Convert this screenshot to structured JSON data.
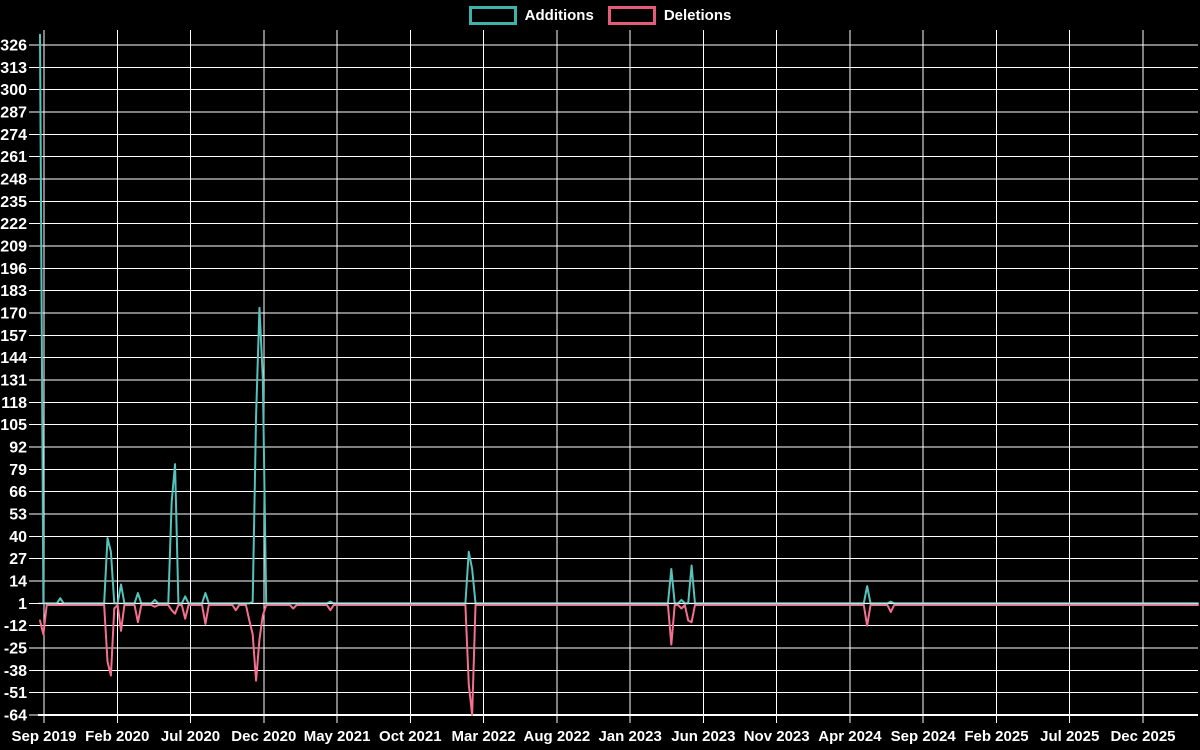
{
  "legend": {
    "items": [
      {
        "label": "Additions",
        "color": "#3db1aa"
      },
      {
        "label": "Deletions",
        "color": "#e65b76"
      }
    ]
  },
  "chart_data": {
    "type": "line",
    "title": "",
    "xlabel": "",
    "ylabel": "",
    "background_color": "#000000",
    "grid_color": "#ffffff",
    "text_color": "#ffffff",
    "grid": true,
    "legend_position": "top-center",
    "x_tick_labels": [
      "Sep 2019",
      "Feb 2020",
      "Jul 2020",
      "Dec 2020",
      "May 2021",
      "Oct 2021",
      "Mar 2022",
      "Aug 2022",
      "Jan 2023",
      "Jun 2023",
      "Nov 2023",
      "Apr 2024",
      "Sep 2024",
      "Feb 2025",
      "Jul 2025",
      "Dec 2025"
    ],
    "y_tick_values": [
      326,
      313,
      300,
      287,
      274,
      261,
      248,
      235,
      222,
      209,
      196,
      183,
      170,
      157,
      144,
      131,
      118,
      105,
      92,
      79,
      66,
      53,
      40,
      27,
      14,
      1,
      -12,
      -25,
      -38,
      -51,
      -64
    ],
    "ylim": [
      -64,
      326
    ],
    "y_step": 13,
    "time_range": "weekly points from Sep 2019 to Dec 2025",
    "num_weeks": 344,
    "baseline": {
      "additions": 1,
      "deletions": 0
    },
    "series": [
      {
        "name": "Additions",
        "line_color": "#55c3bc",
        "spikes": {
          "0": 332,
          "6": 4,
          "20": 39,
          "21": 31,
          "24": 12,
          "29": 7,
          "34": 3,
          "39": 60,
          "40": 82,
          "43": 5,
          "49": 7,
          "63": 2,
          "64": 110,
          "65": 173,
          "66": 132,
          "86": 2,
          "127": 31,
          "128": 21,
          "187": 21,
          "190": 3,
          "193": 23,
          "245": 11,
          "252": 2
        }
      },
      {
        "name": "Deletions",
        "line_color": "#f4708e",
        "spikes": {
          "0": -9,
          "1": -17,
          "20": -33,
          "21": -41,
          "22": -2,
          "24": -15,
          "29": -10,
          "34": -1,
          "39": -3,
          "40": -5,
          "43": -8,
          "49": -11,
          "58": -3,
          "62": -9,
          "63": -17,
          "64": -44,
          "65": -20,
          "66": -6,
          "75": -2,
          "86": -3,
          "127": -46,
          "128": -64,
          "187": -23,
          "190": -2,
          "192": -9,
          "193": -10,
          "245": -12,
          "252": -4
        }
      }
    ]
  }
}
